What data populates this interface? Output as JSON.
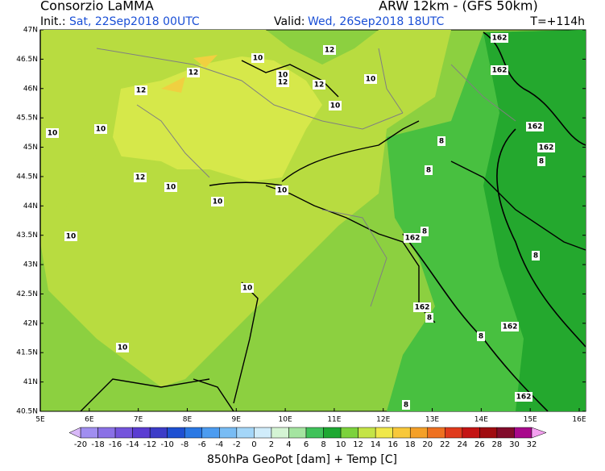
{
  "header": {
    "title": "Consorzio LaMMA",
    "model": "ARW 12km - (GFS 50km)",
    "init_label": "Init.:",
    "init_time": "Sat, 22Sep2018 00UTC",
    "valid_label": "Valid:",
    "valid_time": "Wed, 26Sep2018 18UTC",
    "forecast_step": "T=+114h"
  },
  "map": {
    "lat_labels": [
      "47N",
      "46.5N",
      "46N",
      "45.5N",
      "45N",
      "44.5N",
      "44N",
      "43.5N",
      "43N",
      "42.5N",
      "42N",
      "41.5N",
      "41N",
      "40.5N"
    ],
    "lon_labels": [
      "5E",
      "6E",
      "7E",
      "8E",
      "9E",
      "10E",
      "11E",
      "12E",
      "13E",
      "14E",
      "15E",
      "16E"
    ],
    "contour_labels": [
      "162",
      "162",
      "162",
      "162",
      "162",
      "162",
      "162",
      "162",
      "12",
      "10",
      "12",
      "12",
      "10",
      "12",
      "12",
      "10",
      "10",
      "10",
      "10",
      "8",
      "8",
      "12",
      "10",
      "8",
      "10",
      "10",
      "10",
      "8",
      "8",
      "10",
      "8",
      "8",
      "10",
      "8"
    ]
  },
  "colorbar": {
    "labels": [
      "-20",
      "-18",
      "-16",
      "-14",
      "-12",
      "-10",
      "-8",
      "-6",
      "-4",
      "-2",
      "0",
      "2",
      "4",
      "6",
      "8",
      "10",
      "12",
      "14",
      "16",
      "18",
      "20",
      "22",
      "24",
      "26",
      "28",
      "30",
      "32"
    ],
    "colors": [
      "#d8b8f8",
      "#a08ef0",
      "#8a70e6",
      "#7454dc",
      "#5a3cd2",
      "#3c3cc8",
      "#1e50d2",
      "#2a78e4",
      "#4c9cf0",
      "#78bcf4",
      "#a4d6f8",
      "#d0ecfa",
      "#d4f4d4",
      "#a4e4a0",
      "#40c25a",
      "#1ea832",
      "#7cd23c",
      "#c4e446",
      "#f0e84a",
      "#f8c83a",
      "#f4a028",
      "#ee7020",
      "#e03a1c",
      "#c41414",
      "#a00c10",
      "#820c2c",
      "#a8088c",
      "#e030d0",
      "#f4a0f0"
    ],
    "caption": "850hPa GeoPot [dam] + Temp [C]"
  }
}
